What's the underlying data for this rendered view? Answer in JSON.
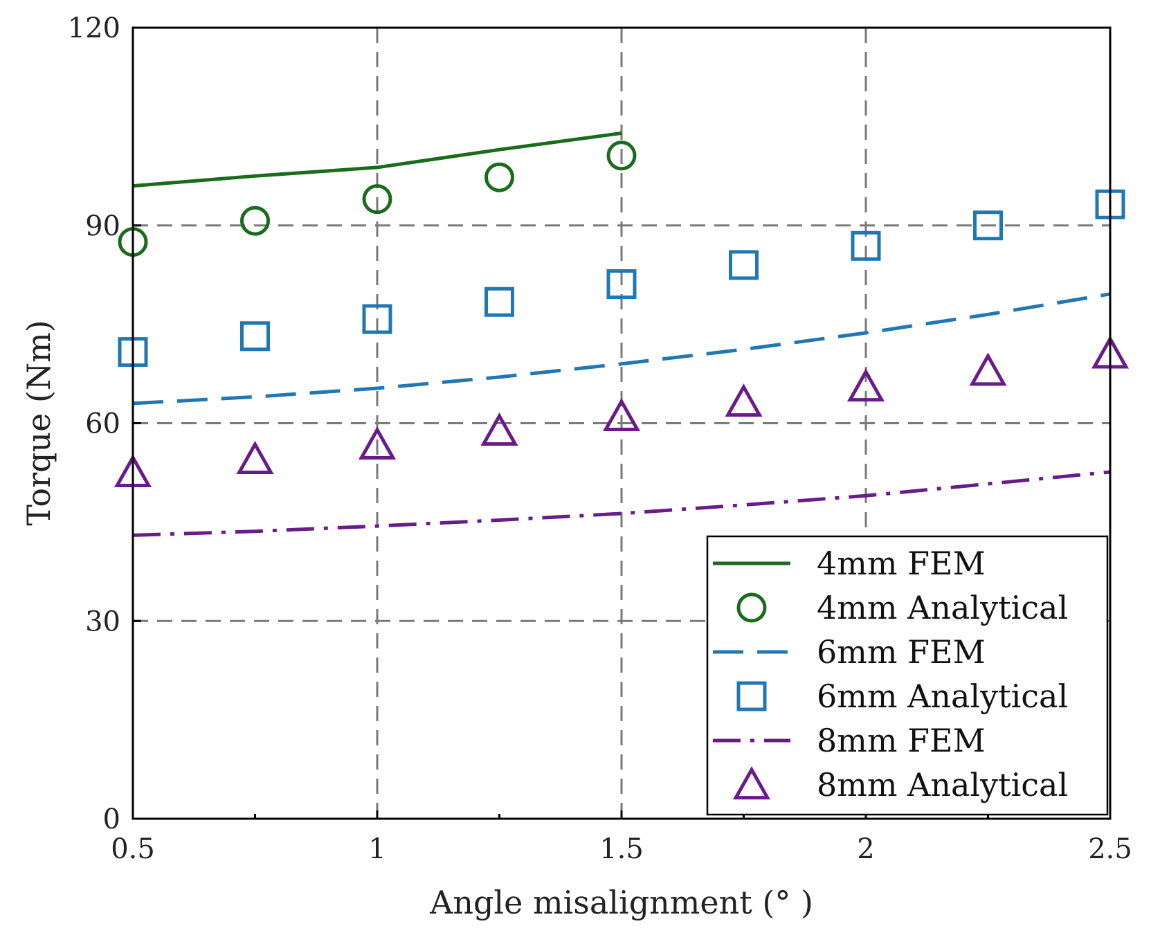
{
  "chart_data": {
    "type": "line",
    "title": "",
    "xlabel": "Angle misalignment (° )",
    "ylabel": "Torque (Nm)",
    "xlim": [
      0.5,
      2.5
    ],
    "ylim": [
      0,
      120
    ],
    "xticks": [
      0.5,
      1,
      1.5,
      2,
      2.5
    ],
    "xtick_labels": [
      "0.5",
      "1",
      "1.5",
      "2",
      "2.5"
    ],
    "yticks": [
      0,
      30,
      60,
      90,
      120
    ],
    "ytick_labels": [
      "0",
      "30",
      "60",
      "90",
      "120"
    ],
    "grid": true,
    "legend_position": "bottom-right",
    "series": [
      {
        "name": "4mm FEM",
        "style": "solid-line",
        "color": "#1a6b1a",
        "x": [
          0.5,
          0.75,
          1.0,
          1.25,
          1.5
        ],
        "y": [
          96.0,
          97.5,
          98.8,
          101.5,
          104.0
        ]
      },
      {
        "name": "4mm Analytical",
        "style": "circle-marker",
        "color": "#1a6b1a",
        "x": [
          0.5,
          0.75,
          1.0,
          1.25,
          1.5
        ],
        "y": [
          87.5,
          90.7,
          94.0,
          97.3,
          100.6
        ]
      },
      {
        "name": "6mm FEM",
        "style": "dashed-line",
        "color": "#1f77b4",
        "x": [
          0.5,
          0.75,
          1.0,
          1.25,
          1.5,
          1.75,
          2.0,
          2.25,
          2.5
        ],
        "y": [
          63.0,
          64.0,
          65.3,
          67.0,
          69.0,
          71.2,
          73.7,
          76.5,
          79.6
        ]
      },
      {
        "name": "6mm Analytical",
        "style": "square-marker",
        "color": "#1f77b4",
        "x": [
          0.5,
          0.75,
          1.0,
          1.25,
          1.5,
          1.75,
          2.0,
          2.25,
          2.5
        ],
        "y": [
          70.8,
          73.2,
          75.8,
          78.4,
          81.1,
          84.0,
          86.9,
          90.0,
          93.2
        ]
      },
      {
        "name": "8mm FEM",
        "style": "dashdot-line",
        "color": "#6a1b8a",
        "x": [
          0.5,
          0.75,
          1.0,
          1.25,
          1.5,
          1.75,
          2.0,
          2.25,
          2.5
        ],
        "y": [
          43.0,
          43.6,
          44.4,
          45.3,
          46.3,
          47.6,
          49.0,
          50.8,
          52.6
        ]
      },
      {
        "name": "8mm Analytical",
        "style": "triangle-marker",
        "color": "#6a1b8a",
        "x": [
          0.5,
          0.75,
          1.0,
          1.25,
          1.5,
          1.75,
          2.0,
          2.25,
          2.5
        ],
        "y": [
          52.5,
          54.5,
          56.7,
          58.8,
          61.0,
          63.2,
          65.5,
          67.9,
          70.5
        ]
      }
    ]
  }
}
